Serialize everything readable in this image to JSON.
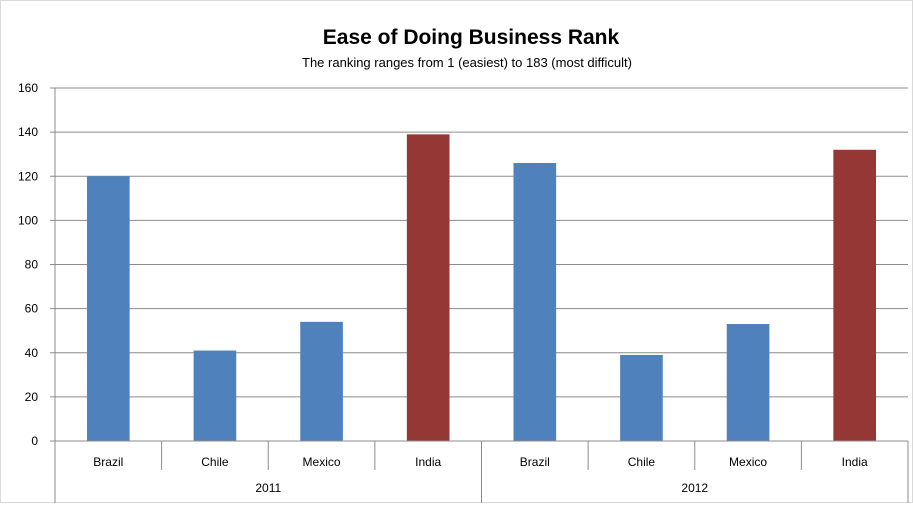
{
  "chart_data": {
    "type": "bar",
    "title": "Ease of Doing Business Rank",
    "subtitle": "The ranking ranges from 1 (easiest) to 183 (most difficult)",
    "xlabel": "",
    "ylabel": "",
    "ylim": [
      0,
      160
    ],
    "y_ticks": [
      "0",
      "20",
      "40",
      "60",
      "80",
      "100",
      "120",
      "140",
      "160"
    ],
    "grid": true,
    "legend": "none",
    "groups": [
      {
        "label": "2011",
        "categories": [
          "Brazil",
          "Chile",
          "Mexico",
          "India"
        ],
        "values": [
          120,
          41,
          54,
          139
        ]
      },
      {
        "label": "2012",
        "categories": [
          "Brazil",
          "Chile",
          "Mexico",
          "India"
        ],
        "values": [
          126,
          39,
          53,
          132
        ]
      }
    ],
    "colors": {
      "default": "#4F81BD",
      "highlight": "#953735",
      "highlight_category": "India"
    }
  }
}
